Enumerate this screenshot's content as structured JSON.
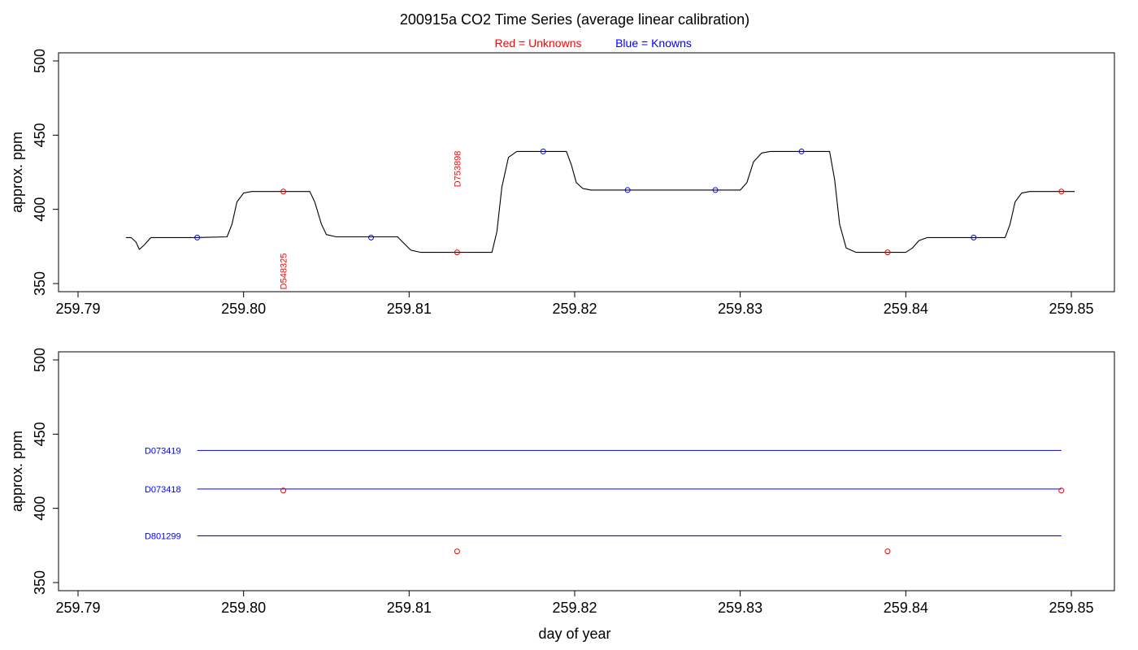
{
  "title": "200915a   CO2 Time Series (average linear calibration)",
  "legend": {
    "red_label": "Red = Unknowns",
    "blue_label": "Blue = Knowns"
  },
  "colors": {
    "unknown": "#ff0000",
    "known": "#0000ff",
    "trace": "#000000"
  },
  "xlabel": "day of year",
  "chart_data": [
    {
      "type": "line",
      "ylabel": "approx. ppm",
      "xlim": [
        259.79,
        259.85
      ],
      "ylim": [
        345,
        500
      ],
      "x_ticks": [
        "259.79",
        "259.80",
        "259.81",
        "259.82",
        "259.83",
        "259.84",
        "259.85"
      ],
      "y_ticks": [
        "350",
        "400",
        "450",
        "500"
      ],
      "trace": [
        [
          259.7929,
          381
        ],
        [
          259.7932,
          381
        ],
        [
          259.7935,
          378
        ],
        [
          259.7937,
          373
        ],
        [
          259.794,
          376
        ],
        [
          259.7944,
          381
        ],
        [
          259.797,
          381
        ],
        [
          259.799,
          381.5
        ],
        [
          259.7993,
          390
        ],
        [
          259.7996,
          405
        ],
        [
          259.8,
          411
        ],
        [
          259.8005,
          412
        ],
        [
          259.804,
          412
        ],
        [
          259.8043,
          405
        ],
        [
          259.8047,
          390
        ],
        [
          259.805,
          383
        ],
        [
          259.8056,
          381.5
        ],
        [
          259.8093,
          381.5
        ],
        [
          259.8097,
          377
        ],
        [
          259.8101,
          372.5
        ],
        [
          259.8107,
          371
        ],
        [
          259.815,
          371
        ],
        [
          259.8153,
          385
        ],
        [
          259.8156,
          415
        ],
        [
          259.816,
          435
        ],
        [
          259.8165,
          439
        ],
        [
          259.8195,
          439
        ],
        [
          259.8198,
          430
        ],
        [
          259.8201,
          418
        ],
        [
          259.8205,
          414
        ],
        [
          259.821,
          413
        ],
        [
          259.83,
          413
        ],
        [
          259.8304,
          418
        ],
        [
          259.8308,
          432
        ],
        [
          259.8313,
          438
        ],
        [
          259.8318,
          439
        ],
        [
          259.8354,
          439
        ],
        [
          259.8357,
          420
        ],
        [
          259.836,
          390
        ],
        [
          259.8364,
          374
        ],
        [
          259.837,
          371
        ],
        [
          259.84,
          371
        ],
        [
          259.8404,
          374
        ],
        [
          259.8408,
          379
        ],
        [
          259.8413,
          381
        ],
        [
          259.846,
          381
        ],
        [
          259.8463,
          390
        ],
        [
          259.8466,
          405
        ],
        [
          259.847,
          411
        ],
        [
          259.8475,
          412
        ],
        [
          259.8502,
          412
        ]
      ],
      "unknowns": [
        {
          "x": 259.8024,
          "y": 412
        },
        {
          "x": 259.8129,
          "y": 371
        },
        {
          "x": 259.8389,
          "y": 371
        },
        {
          "x": 259.8494,
          "y": 412
        }
      ],
      "knowns": [
        {
          "x": 259.7972,
          "y": 381
        },
        {
          "x": 259.8077,
          "y": 381
        },
        {
          "x": 259.8181,
          "y": 439
        },
        {
          "x": 259.8232,
          "y": 413
        },
        {
          "x": 259.8285,
          "y": 413
        },
        {
          "x": 259.8337,
          "y": 439
        },
        {
          "x": 259.8441,
          "y": 381
        }
      ],
      "annotations": [
        {
          "text": "D548325",
          "x": 259.8024,
          "y": 346
        },
        {
          "text": "D753898",
          "x": 259.8129,
          "y": 415
        }
      ]
    },
    {
      "type": "scatter",
      "ylabel": "approx. ppm",
      "xlim": [
        259.79,
        259.85
      ],
      "ylim": [
        345,
        500
      ],
      "x_ticks": [
        "259.79",
        "259.80",
        "259.81",
        "259.82",
        "259.83",
        "259.84",
        "259.85"
      ],
      "y_ticks": [
        "350",
        "400",
        "450",
        "500"
      ],
      "reference_lines": [
        {
          "name": "D073419",
          "y": 439,
          "x_start": 259.7972,
          "x_end": 259.8494
        },
        {
          "name": "D073418",
          "y": 413,
          "x_start": 259.7972,
          "x_end": 259.8494
        },
        {
          "name": "D801299",
          "y": 381.5,
          "x_start": 259.7972,
          "x_end": 259.8494
        }
      ],
      "unknowns": [
        {
          "x": 259.8024,
          "y": 412
        },
        {
          "x": 259.8129,
          "y": 371
        },
        {
          "x": 259.8389,
          "y": 371
        },
        {
          "x": 259.8494,
          "y": 412
        }
      ]
    }
  ]
}
